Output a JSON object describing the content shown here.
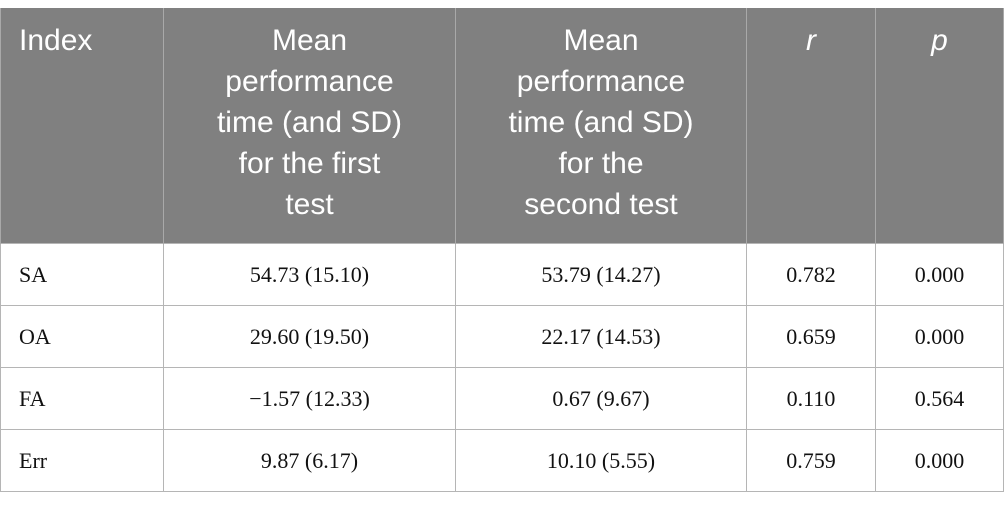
{
  "table": {
    "header": [
      [
        "Index"
      ],
      [
        "Mean",
        "performance",
        "time (and SD)",
        "for the first",
        "test"
      ],
      [
        "Mean",
        "performance",
        "time (and SD)",
        "for the",
        "second test"
      ],
      [
        "r"
      ],
      [
        "p"
      ]
    ],
    "rows": [
      [
        "SA",
        "54.73 (15.10)",
        "53.79 (14.27)",
        "0.782",
        "0.000"
      ],
      [
        "OA",
        "29.60 (19.50)",
        "22.17 (14.53)",
        "0.659",
        "0.000"
      ],
      [
        "FA",
        "−1.57 (12.33)",
        "0.67 (9.67)",
        "0.110",
        "0.564"
      ],
      [
        "Err",
        "9.87 (6.17)",
        "10.10 (5.55)",
        "0.759",
        "0.000"
      ]
    ]
  }
}
